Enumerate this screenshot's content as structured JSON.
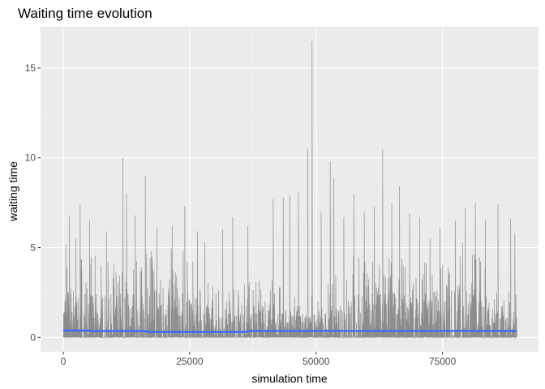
{
  "chart_data": {
    "type": "line",
    "title": "Waiting time evolution",
    "xlabel": "simulation time",
    "ylabel": "waiting time",
    "xlim": [
      -4500,
      94000
    ],
    "ylim": [
      -0.8,
      17.3
    ],
    "x_ticks": [
      0,
      25000,
      50000,
      75000
    ],
    "x_tick_labels": [
      "0",
      "25000",
      "50000",
      "75000"
    ],
    "y_ticks": [
      0,
      5,
      10,
      15
    ],
    "y_tick_labels": [
      "0",
      "5",
      "10",
      "15"
    ],
    "x_range": [
      0,
      89700
    ],
    "grid": true,
    "legend": "none",
    "colors": {
      "panel": "#ebebeb",
      "grid_major": "#ffffff",
      "grid_minor": "#f5f5f5",
      "series": "#8c8c8c",
      "smooth": "#3366ff"
    },
    "series": [
      {
        "role": "waiting-time",
        "peaks": [
          [
            500,
            5.2
          ],
          [
            1200,
            6.8
          ],
          [
            2500,
            5.5
          ],
          [
            3300,
            7.4
          ],
          [
            5200,
            6.5
          ],
          [
            8500,
            5.9
          ],
          [
            11800,
            10.0
          ],
          [
            12500,
            8.0
          ],
          [
            14200,
            6.8
          ],
          [
            16200,
            9.0
          ],
          [
            18500,
            6.1
          ],
          [
            21500,
            6.2
          ],
          [
            24000,
            7.3
          ],
          [
            26500,
            5.9
          ],
          [
            28000,
            5.3
          ],
          [
            31500,
            6.0
          ],
          [
            33500,
            6.7
          ],
          [
            36500,
            6.2
          ],
          [
            41500,
            7.7
          ],
          [
            43500,
            7.8
          ],
          [
            44800,
            7.9
          ],
          [
            46500,
            8.1
          ],
          [
            48400,
            10.5
          ],
          [
            49200,
            16.5
          ],
          [
            51000,
            7.0
          ],
          [
            52800,
            9.8
          ],
          [
            53500,
            8.9
          ],
          [
            55500,
            6.7
          ],
          [
            57500,
            8.0
          ],
          [
            59500,
            7.0
          ],
          [
            61500,
            7.3
          ],
          [
            63200,
            10.5
          ],
          [
            65000,
            7.5
          ],
          [
            66500,
            8.4
          ],
          [
            68500,
            6.9
          ],
          [
            70500,
            6.7
          ],
          [
            72500,
            5.5
          ],
          [
            74500,
            6.1
          ],
          [
            77500,
            6.5
          ],
          [
            79500,
            7.2
          ],
          [
            81500,
            7.5
          ],
          [
            83500,
            6.5
          ],
          [
            86000,
            7.4
          ],
          [
            88500,
            6.6
          ],
          [
            89300,
            5.8
          ]
        ]
      },
      {
        "role": "smooth",
        "x": [
          0,
          5000,
          6000,
          16000,
          17000,
          36000,
          37000,
          89700
        ],
        "y": [
          0.38,
          0.38,
          0.35,
          0.35,
          0.3,
          0.3,
          0.36,
          0.36
        ]
      }
    ]
  }
}
